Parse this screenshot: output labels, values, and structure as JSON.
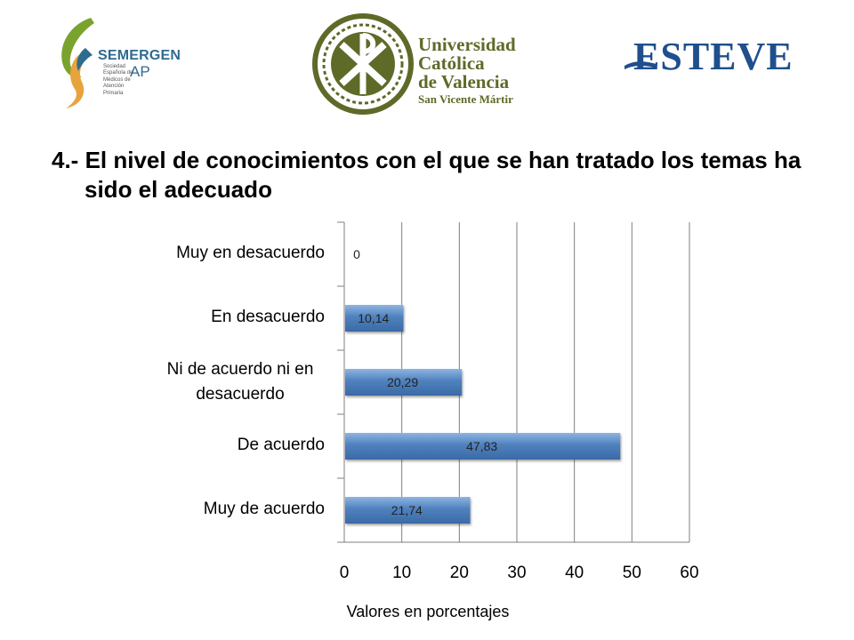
{
  "logos": {
    "semergen": {
      "name": "SEMERGEN",
      "suffix": "AP",
      "subtitle": "Sociedad Española de Médicos de Atención Primaria"
    },
    "ucv": {
      "line1": "Universidad",
      "line2": "Católica",
      "line3": "de Valencia",
      "line4": "San Vicente Mártir"
    },
    "esteve": {
      "name": "ESTEVE"
    }
  },
  "colors": {
    "bar": "#4f81bd",
    "bar_light": "#8db4e2",
    "grid": "#7f7f7f",
    "semergen_green": "#7aa32e",
    "ucv_green": "#5e6a28",
    "esteve_blue": "#1f4f8c"
  },
  "title": "4.- El nivel de conocimientos con el que se han tratado los temas ha sido el adecuado",
  "chart_data": {
    "type": "bar",
    "orientation": "horizontal",
    "categories": [
      "Muy en desacuerdo",
      "En desacuerdo",
      "Ni de acuerdo ni en desacuerdo",
      "De acuerdo",
      "Muy de acuerdo"
    ],
    "values": [
      0,
      10.14,
      20.29,
      47.83,
      21.74
    ],
    "value_labels": [
      "0",
      "10,14",
      "20,29",
      "47,83",
      "21,74"
    ],
    "xlabel": "Valores en porcentajes",
    "ylabel": "",
    "xlim": [
      0,
      60
    ],
    "xticks": [
      0,
      10,
      20,
      30,
      40,
      50,
      60
    ],
    "grid": true,
    "legend": "none"
  }
}
